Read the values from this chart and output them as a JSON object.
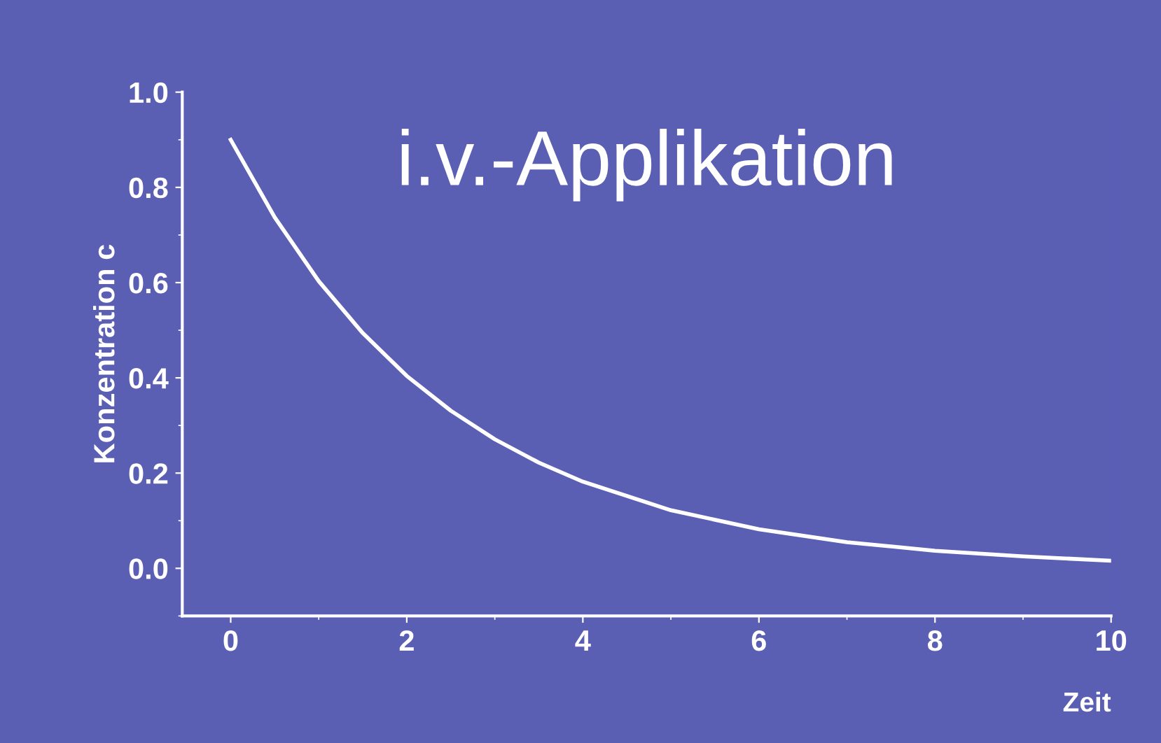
{
  "chart_data": {
    "type": "line",
    "title": "i.v.-Applikation",
    "xlabel": "Zeit",
    "ylabel": "Konzentration c",
    "x": [
      0,
      0.5,
      1,
      1.5,
      2,
      2.5,
      3,
      3.5,
      4,
      5,
      6,
      7,
      8,
      9,
      10
    ],
    "series": [
      {
        "color": "#ffffff",
        "values": [
          0.9,
          0.737,
          0.603,
          0.494,
          0.404,
          0.331,
          0.271,
          0.222,
          0.182,
          0.122,
          0.082,
          0.055,
          0.037,
          0.025,
          0.016
        ]
      }
    ],
    "xlim": [
      -0.55,
      10
    ],
    "ylim": [
      -0.1,
      1.0
    ],
    "xticks": [
      0,
      2,
      4,
      6,
      8,
      10
    ],
    "yticks": [
      {
        "value": 0,
        "label": "0.0"
      },
      0.2,
      0.4,
      0.6,
      0.8,
      {
        "value": 1,
        "label": "1.0"
      }
    ],
    "grid": false,
    "legend": false,
    "marker": "none",
    "line_style": "solid"
  }
}
